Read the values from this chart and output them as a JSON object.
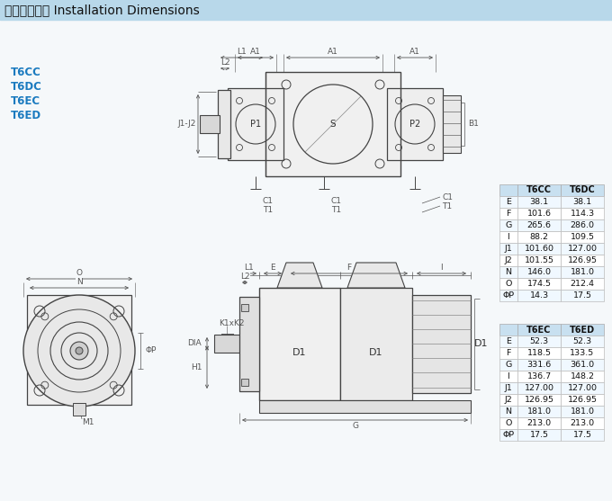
{
  "title": "安装连接尺寸 Installation Dimensions",
  "title_bg": "#b8d8ea",
  "page_bg": "#f5f8fa",
  "model_labels": [
    "T6CC",
    "T6DC",
    "T6EC",
    "T6ED"
  ],
  "model_color": "#1a7abf",
  "table1": {
    "headers": [
      "",
      "T6CC",
      "T6DC"
    ],
    "rows": [
      [
        "E",
        "38.1",
        "38.1"
      ],
      [
        "F",
        "101.6",
        "114.3"
      ],
      [
        "G",
        "265.6",
        "286.0"
      ],
      [
        "I",
        "88.2",
        "109.5"
      ],
      [
        "J1",
        "101.60",
        "127.00"
      ],
      [
        "J2",
        "101.55",
        "126.95"
      ],
      [
        "N",
        "146.0",
        "181.0"
      ],
      [
        "O",
        "174.5",
        "212.4"
      ],
      [
        "ΦP",
        "14.3",
        "17.5"
      ]
    ],
    "header_bg": "#c8e0f0",
    "row_bg_even": "#f0f8ff",
    "row_bg_odd": "#ffffff"
  },
  "table2": {
    "headers": [
      "",
      "T6EC",
      "T6ED"
    ],
    "rows": [
      [
        "E",
        "52.3",
        "52.3"
      ],
      [
        "F",
        "118.5",
        "133.5"
      ],
      [
        "G",
        "331.6",
        "361.0"
      ],
      [
        "I",
        "136.7",
        "148.2"
      ],
      [
        "J1",
        "127.00",
        "127.00"
      ],
      [
        "J2",
        "126.95",
        "126.95"
      ],
      [
        "N",
        "181.0",
        "181.0"
      ],
      [
        "O",
        "213.0",
        "213.0"
      ],
      [
        "ΦP",
        "17.5",
        "17.5"
      ]
    ],
    "header_bg": "#c8e0f0",
    "row_bg_even": "#f0f8ff",
    "row_bg_odd": "#ffffff"
  },
  "drawing_color": "#444444",
  "dim_color": "#555555"
}
